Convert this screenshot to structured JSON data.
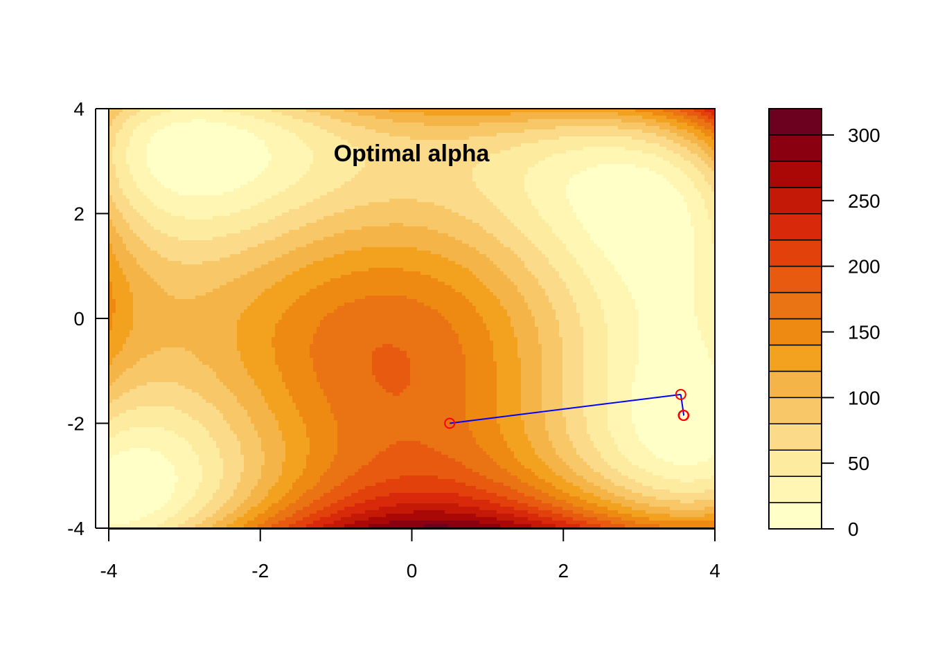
{
  "chart_data": {
    "type": "heatmap",
    "subtype": "filled-contour",
    "title": "Optimal alpha",
    "xlabel": "",
    "ylabel": "",
    "xlim": [
      -4,
      4
    ],
    "ylim": [
      -4,
      4
    ],
    "x_ticks": [
      "-4",
      "-2",
      "0",
      "2",
      "4"
    ],
    "y_ticks": [
      "4",
      "2",
      "0",
      "-2",
      "-4"
    ],
    "x_tick_values": [
      -4,
      -2,
      0,
      2,
      4
    ],
    "y_tick_values": [
      4,
      2,
      0,
      -2,
      -4
    ],
    "grid": false,
    "colorbar": {
      "placement": "right",
      "min": 0,
      "max": 320,
      "levels": [
        0,
        20,
        40,
        60,
        80,
        100,
        120,
        140,
        160,
        180,
        200,
        220,
        240,
        260,
        280,
        300,
        320
      ],
      "tick_values": [
        0,
        50,
        100,
        150,
        200,
        250,
        300
      ],
      "tick_labels": [
        "0",
        "50",
        "100",
        "150",
        "200",
        "250",
        "300"
      ],
      "colors": [
        "#FFFFC8",
        "#FFF6B4",
        "#FDEBA0",
        "#FBDA8A",
        "#F8C868",
        "#F5B447",
        "#F2A21E",
        "#EE8A11",
        "#EA7313",
        "#E75A0F",
        "#E2410C",
        "#D9290B",
        "#C51908",
        "#AA0807",
        "#8A0011",
        "#6B001F"
      ]
    },
    "surface": "Himmelblau function f(x,y) = (x^2 + y - 11)^2 + (x + y^2 - 7)^2",
    "path": {
      "color_line": "#0000FF",
      "color_points": "#FF0000",
      "points": [
        {
          "x": 0.5,
          "y": -2.0
        },
        {
          "x": 3.55,
          "y": -1.45
        },
        {
          "x": 3.59,
          "y": -1.85
        },
        {
          "x": 3.585,
          "y": -1.848
        },
        {
          "x": 3.5844,
          "y": -1.8481
        }
      ]
    }
  }
}
